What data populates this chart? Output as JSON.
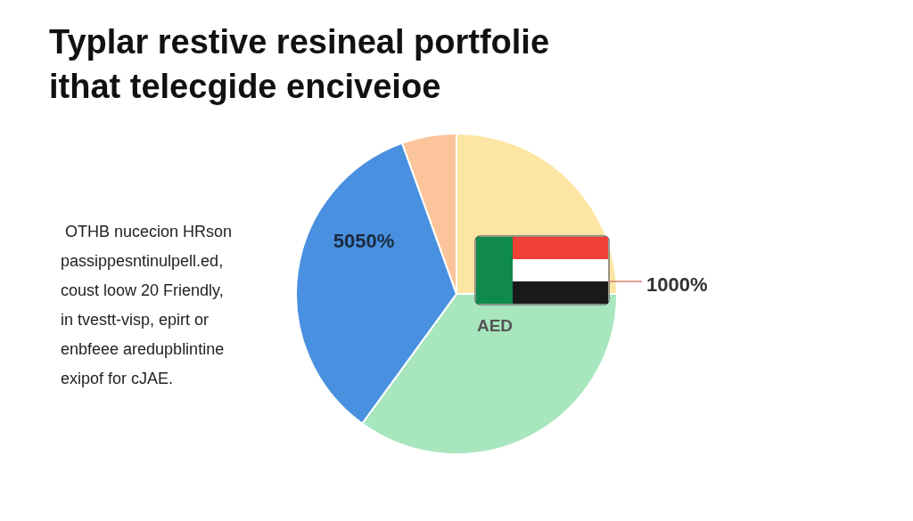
{
  "chart_data": {
    "type": "pie",
    "title": "Typlar restive resineal portfolie\nithat telecgide enciveioe",
    "categories": [
      null,
      null,
      null,
      null
    ],
    "values": [
      25,
      35,
      34.5,
      5.5
    ],
    "colors": [
      "#fde6a4",
      "#a8e6be",
      "#4a90e0",
      "#fbc49a"
    ],
    "annotations": [
      "1000%",
      "AED",
      "5050%",
      "OTHB nucecion HRson\npassippesntinulpell.ed,\ncoust loow 20 Friendly,\nin tvestt-visp, epirt or\nenbfeee aredupblintine\nexipof for cJAE."
    ]
  }
}
